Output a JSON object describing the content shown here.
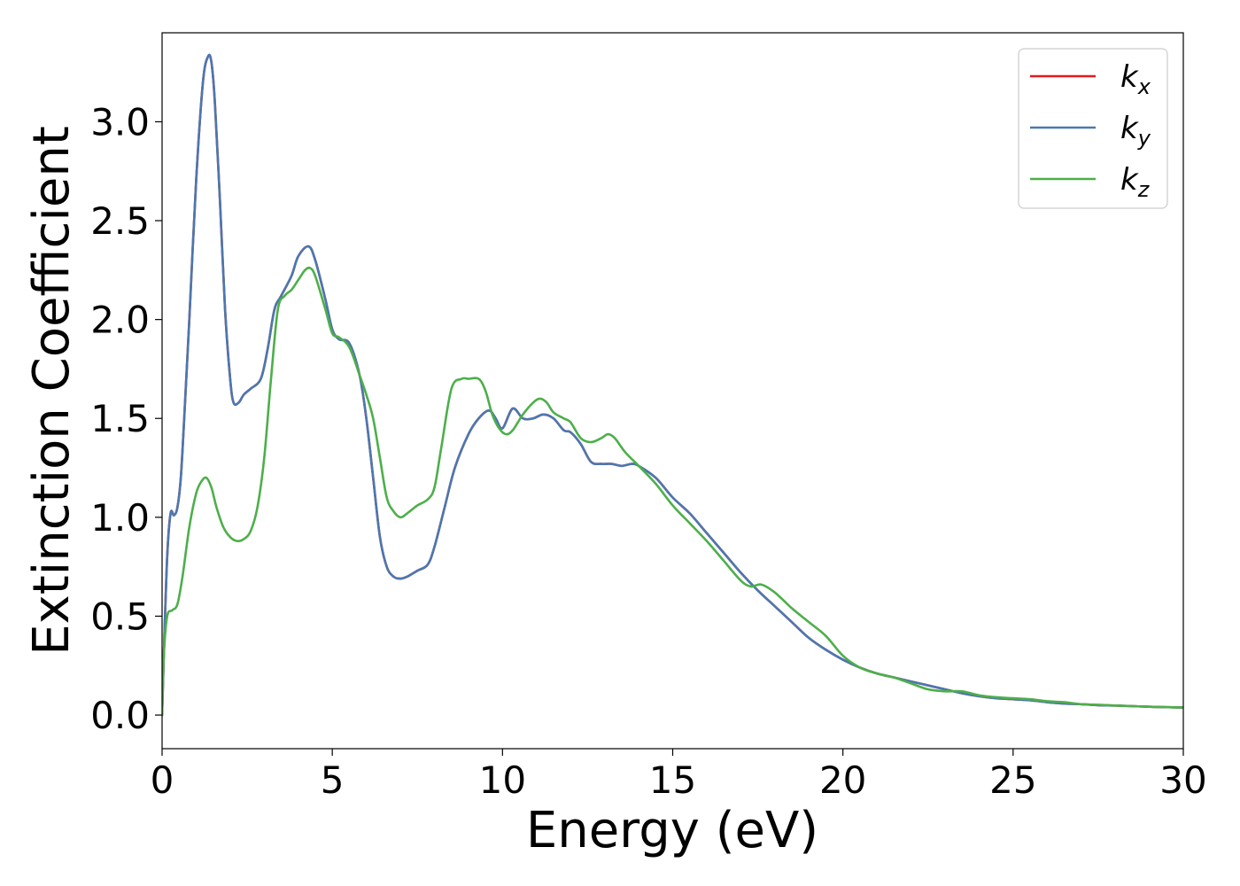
{
  "chart_data": {
    "type": "line",
    "title": "",
    "xlabel": "Energy (eV)",
    "ylabel": "Extinction Coefficient",
    "xlim": [
      0,
      30
    ],
    "ylim": [
      -0.17,
      3.45
    ],
    "xticks": [
      0,
      5,
      10,
      15,
      20,
      25,
      30
    ],
    "xtick_labels": [
      "0",
      "5",
      "10",
      "15",
      "20",
      "25",
      "30"
    ],
    "yticks": [
      0.0,
      0.5,
      1.0,
      1.5,
      2.0,
      2.5,
      3.0
    ],
    "ytick_labels": [
      "0.0",
      "0.5",
      "1.0",
      "1.5",
      "2.0",
      "2.5",
      "3.0"
    ],
    "grid": false,
    "legend": {
      "position": "top-right",
      "entries": [
        {
          "base": "k",
          "sub": "x",
          "color": "#e41a1c"
        },
        {
          "base": "k",
          "sub": "y",
          "color": "#4a78b0"
        },
        {
          "base": "k",
          "sub": "z",
          "color": "#4daf4a"
        }
      ]
    },
    "series": [
      {
        "name": "k_x",
        "color": "#e41a1c",
        "x": [
          0,
          0.05,
          0.15,
          0.25,
          0.35,
          0.45,
          0.55,
          0.65,
          0.8,
          1.0,
          1.2,
          1.35,
          1.45,
          1.55,
          1.7,
          1.85,
          2.0,
          2.1,
          2.25,
          2.4,
          2.6,
          2.9,
          3.1,
          3.3,
          3.5,
          3.8,
          4.0,
          4.3,
          4.5,
          4.8,
          5.0,
          5.2,
          5.5,
          5.8,
          6.0,
          6.2,
          6.4,
          6.6,
          6.8,
          7.0,
          7.2,
          7.5,
          7.8,
          8.0,
          8.3,
          8.6,
          9.0,
          9.3,
          9.6,
          9.8,
          10.0,
          10.3,
          10.6,
          10.9,
          11.2,
          11.5,
          11.8,
          12.0,
          12.3,
          12.6,
          12.9,
          13.2,
          13.5,
          13.8,
          14.0,
          14.5,
          15.0,
          15.5,
          16.0,
          16.5,
          17.0,
          17.5,
          18.0,
          18.5,
          19.0,
          19.5,
          20.0,
          20.5,
          21.0,
          21.5,
          22.0,
          22.5,
          23.0,
          23.5,
          24.0,
          24.5,
          25.0,
          25.5,
          26.0,
          26.5,
          27.0,
          27.5,
          28.0,
          28.5,
          29.0,
          29.5,
          30.0
        ],
        "y": [
          0.0,
          0.3,
          0.8,
          1.02,
          1.01,
          1.05,
          1.2,
          1.5,
          2.0,
          2.7,
          3.2,
          3.33,
          3.3,
          3.1,
          2.6,
          2.05,
          1.7,
          1.58,
          1.58,
          1.62,
          1.65,
          1.7,
          1.85,
          2.05,
          2.12,
          2.22,
          2.32,
          2.37,
          2.3,
          2.1,
          1.95,
          1.9,
          1.88,
          1.72,
          1.5,
          1.2,
          0.9,
          0.75,
          0.7,
          0.69,
          0.7,
          0.73,
          0.76,
          0.85,
          1.05,
          1.25,
          1.42,
          1.5,
          1.54,
          1.5,
          1.45,
          1.55,
          1.5,
          1.5,
          1.52,
          1.5,
          1.44,
          1.43,
          1.37,
          1.28,
          1.27,
          1.27,
          1.26,
          1.27,
          1.26,
          1.2,
          1.1,
          1.02,
          0.92,
          0.82,
          0.72,
          0.63,
          0.55,
          0.47,
          0.39,
          0.33,
          0.28,
          0.24,
          0.21,
          0.19,
          0.17,
          0.15,
          0.13,
          0.11,
          0.095,
          0.085,
          0.08,
          0.075,
          0.065,
          0.058,
          0.055,
          0.05,
          0.048,
          0.045,
          0.042,
          0.04,
          0.038
        ]
      },
      {
        "name": "k_y",
        "color": "#4a78b0",
        "x": [
          0,
          0.05,
          0.15,
          0.25,
          0.35,
          0.45,
          0.55,
          0.65,
          0.8,
          1.0,
          1.2,
          1.35,
          1.45,
          1.55,
          1.7,
          1.85,
          2.0,
          2.1,
          2.25,
          2.4,
          2.6,
          2.9,
          3.1,
          3.3,
          3.5,
          3.8,
          4.0,
          4.3,
          4.5,
          4.8,
          5.0,
          5.2,
          5.5,
          5.8,
          6.0,
          6.2,
          6.4,
          6.6,
          6.8,
          7.0,
          7.2,
          7.5,
          7.8,
          8.0,
          8.3,
          8.6,
          9.0,
          9.3,
          9.6,
          9.8,
          10.0,
          10.3,
          10.6,
          10.9,
          11.2,
          11.5,
          11.8,
          12.0,
          12.3,
          12.6,
          12.9,
          13.2,
          13.5,
          13.8,
          14.0,
          14.5,
          15.0,
          15.5,
          16.0,
          16.5,
          17.0,
          17.5,
          18.0,
          18.5,
          19.0,
          19.5,
          20.0,
          20.5,
          21.0,
          21.5,
          22.0,
          22.5,
          23.0,
          23.5,
          24.0,
          24.5,
          25.0,
          25.5,
          26.0,
          26.5,
          27.0,
          27.5,
          28.0,
          28.5,
          29.0,
          29.5,
          30.0
        ],
        "y": [
          0.0,
          0.3,
          0.8,
          1.02,
          1.01,
          1.05,
          1.2,
          1.5,
          2.0,
          2.7,
          3.2,
          3.33,
          3.3,
          3.1,
          2.6,
          2.05,
          1.7,
          1.58,
          1.58,
          1.62,
          1.65,
          1.7,
          1.85,
          2.05,
          2.12,
          2.22,
          2.32,
          2.37,
          2.3,
          2.1,
          1.95,
          1.9,
          1.88,
          1.72,
          1.5,
          1.2,
          0.9,
          0.75,
          0.7,
          0.69,
          0.7,
          0.73,
          0.76,
          0.85,
          1.05,
          1.25,
          1.42,
          1.5,
          1.54,
          1.5,
          1.45,
          1.55,
          1.5,
          1.5,
          1.52,
          1.5,
          1.44,
          1.43,
          1.37,
          1.28,
          1.27,
          1.27,
          1.26,
          1.27,
          1.26,
          1.2,
          1.1,
          1.02,
          0.92,
          0.82,
          0.72,
          0.63,
          0.55,
          0.47,
          0.39,
          0.33,
          0.28,
          0.24,
          0.21,
          0.19,
          0.17,
          0.15,
          0.13,
          0.11,
          0.095,
          0.085,
          0.08,
          0.075,
          0.065,
          0.058,
          0.055,
          0.05,
          0.048,
          0.045,
          0.042,
          0.04,
          0.038
        ]
      },
      {
        "name": "k_z",
        "color": "#4daf4a",
        "x": [
          0,
          0.05,
          0.15,
          0.3,
          0.45,
          0.6,
          0.8,
          1.0,
          1.15,
          1.3,
          1.45,
          1.6,
          1.8,
          2.0,
          2.2,
          2.4,
          2.6,
          2.8,
          3.0,
          3.2,
          3.4,
          3.6,
          3.8,
          4.0,
          4.2,
          4.35,
          4.5,
          4.8,
          5.0,
          5.2,
          5.5,
          5.8,
          6.0,
          6.2,
          6.4,
          6.6,
          6.8,
          7.0,
          7.2,
          7.5,
          7.8,
          8.0,
          8.2,
          8.5,
          8.8,
          9.0,
          9.3,
          9.5,
          9.7,
          9.9,
          10.1,
          10.3,
          10.6,
          10.9,
          11.1,
          11.3,
          11.5,
          11.8,
          12.0,
          12.3,
          12.6,
          12.9,
          13.1,
          13.3,
          13.6,
          14.0,
          14.5,
          15.0,
          15.5,
          16.0,
          16.5,
          17.0,
          17.3,
          17.6,
          18.0,
          18.5,
          19.0,
          19.5,
          20.0,
          20.5,
          21.0,
          21.5,
          22.0,
          22.5,
          23.0,
          23.5,
          24.0,
          24.5,
          25.0,
          25.5,
          26.0,
          26.5,
          27.0,
          27.5,
          28.0,
          28.5,
          29.0,
          29.5,
          30.0
        ],
        "y": [
          0.0,
          0.3,
          0.5,
          0.53,
          0.56,
          0.7,
          0.95,
          1.12,
          1.18,
          1.2,
          1.15,
          1.05,
          0.95,
          0.9,
          0.88,
          0.89,
          0.93,
          1.05,
          1.3,
          1.7,
          2.05,
          2.12,
          2.15,
          2.2,
          2.25,
          2.26,
          2.22,
          2.05,
          1.93,
          1.91,
          1.86,
          1.72,
          1.62,
          1.5,
          1.3,
          1.1,
          1.03,
          1.0,
          1.02,
          1.06,
          1.09,
          1.15,
          1.35,
          1.65,
          1.7,
          1.7,
          1.7,
          1.64,
          1.52,
          1.45,
          1.42,
          1.44,
          1.52,
          1.58,
          1.6,
          1.58,
          1.53,
          1.5,
          1.48,
          1.4,
          1.38,
          1.4,
          1.42,
          1.4,
          1.33,
          1.26,
          1.17,
          1.06,
          0.97,
          0.88,
          0.78,
          0.68,
          0.65,
          0.66,
          0.62,
          0.54,
          0.47,
          0.4,
          0.3,
          0.24,
          0.21,
          0.19,
          0.16,
          0.13,
          0.12,
          0.12,
          0.1,
          0.09,
          0.085,
          0.08,
          0.07,
          0.065,
          0.055,
          0.052,
          0.048,
          0.045,
          0.042,
          0.04,
          0.038
        ]
      }
    ]
  }
}
